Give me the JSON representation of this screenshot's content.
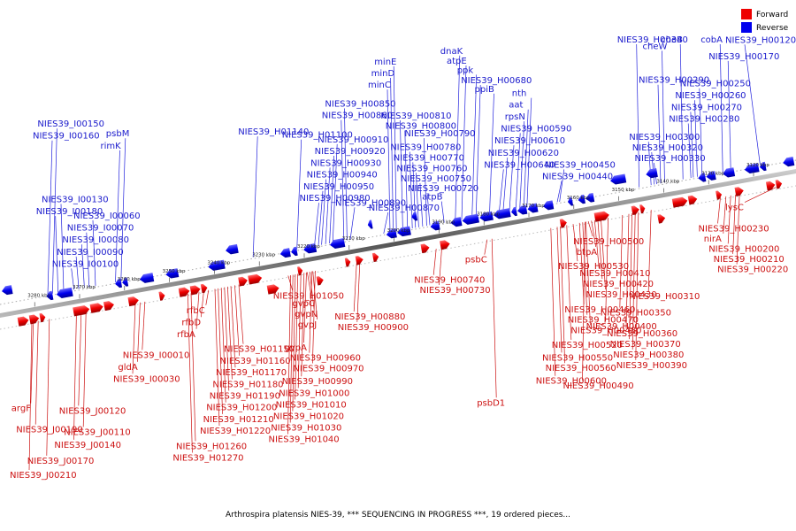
{
  "caption": "Arthrospira platensis NIES-39, *** SEQUENCING IN PROGRESS ***, 19 ordered pieces...",
  "legend": [
    {
      "label": "Forward",
      "color": "#ee0000"
    },
    {
      "label": "Reverse",
      "color": "#0000ee"
    }
  ],
  "colors": {
    "forward": "#ee0000",
    "reverse": "#0000ee",
    "forward_line": "#cc1111",
    "reverse_line": "#2222dd"
  },
  "ticks": [
    "3120 kbp",
    "3130 kbp",
    "3140 kbp",
    "3150 kbp",
    "3160 kbp",
    "3170 kbp",
    "3180 kbp",
    "3190 kbp",
    "3200 kbp",
    "3210 kbp",
    "3220 kbp",
    "3230 kbp",
    "3240 kbp",
    "3250 kbp",
    "3260 kbp",
    "3270 kbp",
    "3280 kbp"
  ],
  "reverse_labels": [
    {
      "text": "NIES39_H00330",
      "g": 0.825
    },
    {
      "text": "NIES39_H00320",
      "g": 0.822
    },
    {
      "text": "NIES39_H00300",
      "g": 0.818
    },
    {
      "text": "NIES39_H00280",
      "g": 0.868
    },
    {
      "text": "NIES39_H00270",
      "g": 0.871
    },
    {
      "text": "NIES39_H00260",
      "g": 0.876
    },
    {
      "text": "NIES39_H00250",
      "g": 0.882
    },
    {
      "text": "NIES39_H00290",
      "g": 0.83
    },
    {
      "text": "NIES39_H00170",
      "g": 0.918
    },
    {
      "text": "NIES39_H00120",
      "g": 0.955
    },
    {
      "text": "cheW",
      "g": 0.835
    },
    {
      "text": "cheB",
      "g": 0.858
    },
    {
      "text": "cobA",
      "g": 0.908
    },
    {
      "text": "NIES39_H00340",
      "g": 0.803
    },
    {
      "text": "NIES39_H00440",
      "g": 0.7
    },
    {
      "text": "NIES39_H00450",
      "g": 0.703
    },
    {
      "text": "NIES39_H00640",
      "g": 0.627
    },
    {
      "text": "NIES39_H00620",
      "g": 0.632
    },
    {
      "text": "NIES39_H00610",
      "g": 0.64
    },
    {
      "text": "NIES39_H00590",
      "g": 0.648
    },
    {
      "text": "rpsN",
      "g": 0.653
    },
    {
      "text": "aat",
      "g": 0.658
    },
    {
      "text": "nth",
      "g": 0.662
    },
    {
      "text": "ppiB",
      "g": 0.615
    },
    {
      "text": "NIES39_H00680",
      "g": 0.598
    },
    {
      "text": "ppk",
      "g": 0.593
    },
    {
      "text": "atpE",
      "g": 0.58
    },
    {
      "text": "dnaK",
      "g": 0.572
    },
    {
      "text": "atpB",
      "g": 0.558
    },
    {
      "text": "NIES39_H00720",
      "g": 0.54
    },
    {
      "text": "NIES39_H00750",
      "g": 0.531
    },
    {
      "text": "NIES39_H00760",
      "g": 0.526
    },
    {
      "text": "NIES39_H00770",
      "g": 0.522
    },
    {
      "text": "NIES39_H00780",
      "g": 0.518
    },
    {
      "text": "NIES39_H00790",
      "g": 0.536
    },
    {
      "text": "NIES39_H00800",
      "g": 0.512
    },
    {
      "text": "NIES39_H00810",
      "g": 0.506
    },
    {
      "text": "NIES39_H00860",
      "g": 0.432
    },
    {
      "text": "NIES39_H00850",
      "g": 0.436
    },
    {
      "text": "minC",
      "g": 0.49
    },
    {
      "text": "minD",
      "g": 0.494
    },
    {
      "text": "minE",
      "g": 0.498
    },
    {
      "text": "NIES39_H00870",
      "g": 0.482
    },
    {
      "text": "NIES39_H00890",
      "g": 0.44
    },
    {
      "text": "NIES39_H00980",
      "g": 0.395
    },
    {
      "text": "NIES39_H00950",
      "g": 0.4
    },
    {
      "text": "NIES39_H00940",
      "g": 0.404
    },
    {
      "text": "NIES39_H00930",
      "g": 0.409
    },
    {
      "text": "NIES39_H00920",
      "g": 0.414
    },
    {
      "text": "NIES39_H00910",
      "g": 0.418
    },
    {
      "text": "NIES39_H01100",
      "g": 0.373
    },
    {
      "text": "NIES39_H01140",
      "g": 0.318
    },
    {
      "text": "rimK",
      "g": 0.145
    },
    {
      "text": "psbM",
      "g": 0.152
    },
    {
      "text": "NIES39_I00160",
      "g": 0.06
    },
    {
      "text": "NIES39_I00150",
      "g": 0.066
    },
    {
      "text": "NIES39_I00100",
      "g": 0.093
    },
    {
      "text": "NIES39_I00090",
      "g": 0.099
    },
    {
      "text": "NIES39_I00080",
      "g": 0.106
    },
    {
      "text": "NIES39_I00070",
      "g": 0.112
    },
    {
      "text": "NIES39_I00060",
      "g": 0.12
    },
    {
      "text": "NIES39_I00180",
      "g": 0.073
    },
    {
      "text": "NIES39_I00130",
      "g": 0.08
    }
  ],
  "forward_labels": [
    {
      "text": "lysC",
      "g": 0.975
    },
    {
      "text": "NIES39_H00230",
      "g": 0.905
    },
    {
      "text": "nirA",
      "g": 0.912
    },
    {
      "text": "NIES39_H00200",
      "g": 0.918
    },
    {
      "text": "NIES39_H00210",
      "g": 0.924
    },
    {
      "text": "NIES39_H00220",
      "g": 0.929
    },
    {
      "text": "NIES39_H00310",
      "g": 0.818
    },
    {
      "text": "NIES39_H00350",
      "g": 0.782
    },
    {
      "text": "NIES39_H00400",
      "g": 0.764
    },
    {
      "text": "NIES39_H00360",
      "g": 0.79
    },
    {
      "text": "NIES39_H00370",
      "g": 0.794
    },
    {
      "text": "NIES39_H00380",
      "g": 0.798
    },
    {
      "text": "NIES39_H00390",
      "g": 0.802
    },
    {
      "text": "NIES39_H00490",
      "g": 0.735
    },
    {
      "text": "NIES39_H00500",
      "g": 0.739
    },
    {
      "text": "btpA",
      "g": 0.743
    },
    {
      "text": "NIES39_H00530",
      "g": 0.72
    },
    {
      "text": "NIES39_H00410",
      "g": 0.747
    },
    {
      "text": "NIES39_H00420",
      "g": 0.751
    },
    {
      "text": "NIES39_H00430",
      "g": 0.755
    },
    {
      "text": "NIES39_H00460",
      "g": 0.728
    },
    {
      "text": "NIES39_H00470",
      "g": 0.732
    },
    {
      "text": "NIES39_H00480",
      "g": 0.736
    },
    {
      "text": "NIES39_H00520",
      "g": 0.712
    },
    {
      "text": "NIES39_H00550",
      "g": 0.7
    },
    {
      "text": "NIES39_H00560",
      "g": 0.704
    },
    {
      "text": "NIES39_H00600",
      "g": 0.692
    },
    {
      "text": "psbD1",
      "g": 0.618
    },
    {
      "text": "psbC",
      "g": 0.612
    },
    {
      "text": "NIES39_H00740",
      "g": 0.548
    },
    {
      "text": "NIES39_H00730",
      "g": 0.555
    },
    {
      "text": "NIES39_H00880",
      "g": 0.448
    },
    {
      "text": "NIES39_H00900",
      "g": 0.452
    },
    {
      "text": "gvpA",
      "g": 0.385
    },
    {
      "text": "NIES39_H00960",
      "g": 0.392
    },
    {
      "text": "NIES39_H00970",
      "g": 0.396
    },
    {
      "text": "NIES39_H00990",
      "g": 0.382
    },
    {
      "text": "NIES39_H01000",
      "g": 0.378
    },
    {
      "text": "NIES39_H01010",
      "g": 0.374
    },
    {
      "text": "NIES39_H01020",
      "g": 0.371
    },
    {
      "text": "NIES39_H01030",
      "g": 0.368
    },
    {
      "text": "NIES39_H01040",
      "g": 0.365
    },
    {
      "text": "NIES39_H01050",
      "g": 0.362
    },
    {
      "text": "gvpC",
      "g": 0.386
    },
    {
      "text": "gvpN",
      "g": 0.389
    },
    {
      "text": "gvpJ",
      "g": 0.393
    },
    {
      "text": "NIES39_H01150",
      "g": 0.3
    },
    {
      "text": "NIES39_H01160",
      "g": 0.295
    },
    {
      "text": "NIES39_H01170",
      "g": 0.29
    },
    {
      "text": "NIES39_H01180",
      "g": 0.286
    },
    {
      "text": "NIES39_H01190",
      "g": 0.282
    },
    {
      "text": "NIES39_H01200",
      "g": 0.278
    },
    {
      "text": "NIES39_H01210",
      "g": 0.274
    },
    {
      "text": "NIES39_H01220",
      "g": 0.27
    },
    {
      "text": "NIES39_H01260",
      "g": 0.24
    },
    {
      "text": "NIES39_H01270",
      "g": 0.236
    },
    {
      "text": "rfbC",
      "g": 0.262
    },
    {
      "text": "rfbD",
      "g": 0.256
    },
    {
      "text": "rfbA",
      "g": 0.25
    },
    {
      "text": "NIES39_I00010",
      "g": 0.182
    },
    {
      "text": "gldA",
      "g": 0.176
    },
    {
      "text": "NIES39_I00030",
      "g": 0.17
    },
    {
      "text": "argF",
      "g": 0.042
    },
    {
      "text": "NIES39_J00120",
      "g": 0.102
    },
    {
      "text": "NIES39_J00190",
      "g": 0.048
    },
    {
      "text": "NIES39_J00110",
      "g": 0.108
    },
    {
      "text": "NIES39_J00140",
      "g": 0.096
    },
    {
      "text": "NIES39_J00170",
      "g": 0.062
    },
    {
      "text": "NIES39_J00210",
      "g": 0.04
    }
  ]
}
